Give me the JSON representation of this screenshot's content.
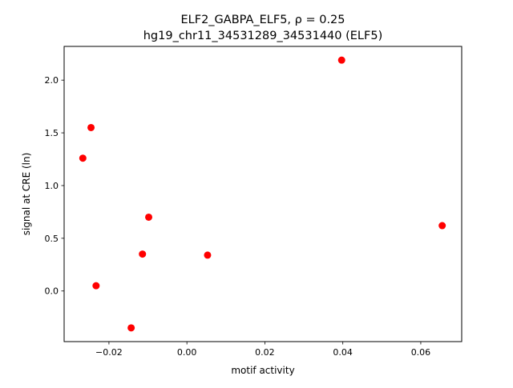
{
  "chart_data": {
    "type": "scatter",
    "title_line1": "ELF2_GABPA_ELF5, ρ = 0.25",
    "title_line2": "hg19_chr11_34531289_34531440 (ELF5)",
    "xlabel": "motif activity",
    "ylabel": "signal at CRE (ln)",
    "xlim": [
      -0.0315,
      0.0705
    ],
    "ylim": [
      -0.48,
      2.32
    ],
    "xticks": [
      {
        "value": -0.02,
        "label": "−0.02"
      },
      {
        "value": 0.0,
        "label": "0.00"
      },
      {
        "value": 0.02,
        "label": "0.02"
      },
      {
        "value": 0.04,
        "label": "0.04"
      },
      {
        "value": 0.06,
        "label": "0.06"
      }
    ],
    "yticks": [
      {
        "value": 0.0,
        "label": "0.0"
      },
      {
        "value": 0.5,
        "label": "0.5"
      },
      {
        "value": 1.0,
        "label": "1.0"
      },
      {
        "value": 1.5,
        "label": "1.5"
      },
      {
        "value": 2.0,
        "label": "2.0"
      }
    ],
    "grid": false,
    "legend": "none",
    "marker_color": "#ff0000",
    "points": [
      {
        "x": -0.0267,
        "y": 1.26
      },
      {
        "x": -0.0246,
        "y": 1.55
      },
      {
        "x": -0.0233,
        "y": 0.05
      },
      {
        "x": -0.0143,
        "y": -0.35
      },
      {
        "x": -0.0114,
        "y": 0.35
      },
      {
        "x": -0.0098,
        "y": 0.7
      },
      {
        "x": 0.0053,
        "y": 0.34
      },
      {
        "x": 0.0397,
        "y": 2.19
      },
      {
        "x": 0.0655,
        "y": 0.62
      }
    ]
  }
}
